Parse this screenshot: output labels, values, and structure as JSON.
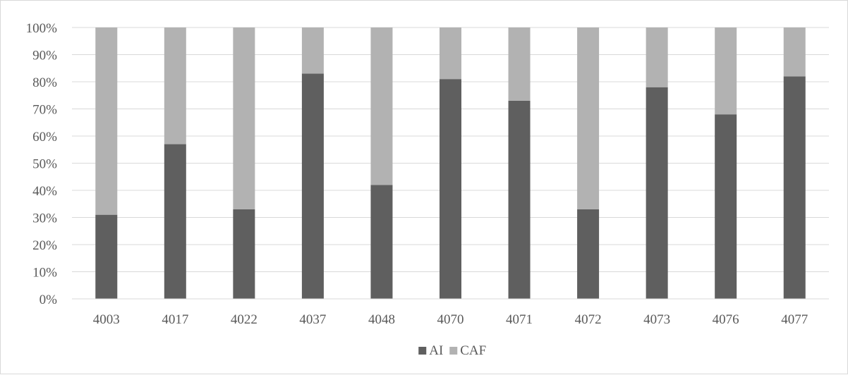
{
  "chart_data": {
    "type": "bar",
    "stacked": true,
    "percent_stacked": true,
    "categories": [
      "4003",
      "4017",
      "4022",
      "4037",
      "4048",
      "4070",
      "4071",
      "4072",
      "4073",
      "4076",
      "4077"
    ],
    "series": [
      {
        "name": "AI",
        "color": "#5f5f5f",
        "values": [
          31,
          57,
          33,
          83,
          42,
          81,
          73,
          33,
          78,
          68,
          82
        ]
      },
      {
        "name": "CAF",
        "color": "#b2b2b2",
        "values": [
          69,
          43,
          67,
          17,
          58,
          19,
          27,
          67,
          22,
          32,
          18
        ]
      }
    ],
    "y_ticks": [
      "0%",
      "10%",
      "20%",
      "30%",
      "40%",
      "50%",
      "60%",
      "70%",
      "80%",
      "90%",
      "100%"
    ],
    "ylim": [
      0,
      100
    ],
    "grid": true,
    "legend_position": "bottom",
    "gridline_color": "#d9d9d9"
  }
}
